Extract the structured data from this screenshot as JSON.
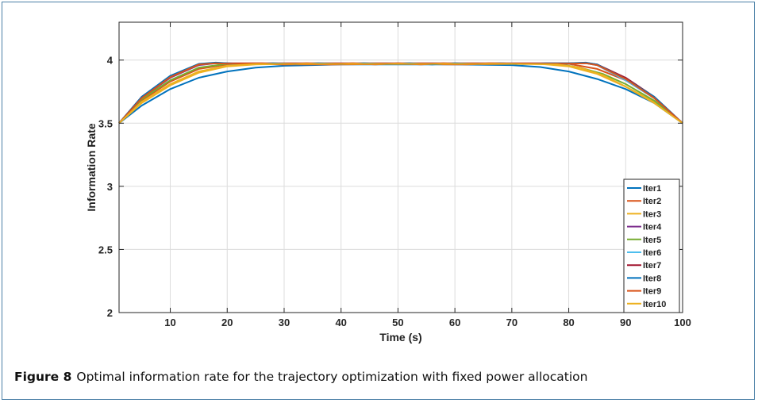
{
  "caption": {
    "label": "Figure 8",
    "text": "Optimal information rate for the trajectory optimization with fixed power allocation"
  },
  "chart_data": {
    "type": "line",
    "title": "",
    "xlabel": "Time (s)",
    "ylabel": "Information Rate",
    "xlim": [
      1,
      100
    ],
    "ylim": [
      2,
      4.3
    ],
    "xticks": [
      10,
      20,
      30,
      40,
      50,
      60,
      70,
      80,
      90,
      100
    ],
    "yticks": [
      2,
      2.5,
      3,
      3.5,
      4
    ],
    "ytick_labels": [
      "2",
      "2.5",
      "3",
      "3.5",
      "4"
    ],
    "grid": true,
    "legend_position": "bottom-right",
    "series": [
      {
        "name": "Iter1",
        "color": "#0072BD",
        "x": [
          1,
          5,
          10,
          15,
          20,
          25,
          30,
          40,
          50,
          60,
          70,
          75,
          80,
          85,
          90,
          95,
          100
        ],
        "y": [
          3.5,
          3.64,
          3.77,
          3.86,
          3.91,
          3.94,
          3.955,
          3.965,
          3.965,
          3.965,
          3.96,
          3.945,
          3.91,
          3.85,
          3.77,
          3.66,
          3.5
        ]
      },
      {
        "name": "Iter2",
        "color": "#D95319",
        "x": [
          1,
          5,
          10,
          15,
          20,
          25,
          30,
          40,
          50,
          60,
          70,
          80,
          85,
          90,
          95,
          100
        ],
        "y": [
          3.5,
          3.68,
          3.83,
          3.93,
          3.965,
          3.97,
          3.965,
          3.965,
          3.97,
          3.965,
          3.97,
          3.97,
          3.93,
          3.84,
          3.7,
          3.5
        ]
      },
      {
        "name": "Iter3",
        "color": "#EDB120",
        "x": [
          1,
          5,
          10,
          15,
          20,
          25,
          30,
          40,
          50,
          60,
          70,
          75,
          80,
          85,
          90,
          95,
          100
        ],
        "y": [
          3.5,
          3.66,
          3.8,
          3.9,
          3.95,
          3.965,
          3.97,
          3.97,
          3.97,
          3.97,
          3.97,
          3.97,
          3.95,
          3.89,
          3.79,
          3.67,
          3.5
        ]
      },
      {
        "name": "Iter4",
        "color": "#7E2F8E",
        "x": [
          1,
          5,
          10,
          15,
          18,
          20,
          30,
          40,
          50,
          60,
          70,
          80,
          83,
          85,
          90,
          95,
          100
        ],
        "y": [
          3.5,
          3.7,
          3.86,
          3.96,
          3.975,
          3.972,
          3.972,
          3.972,
          3.972,
          3.972,
          3.972,
          3.972,
          3.975,
          3.96,
          3.84,
          3.7,
          3.5
        ]
      },
      {
        "name": "Iter5",
        "color": "#77AC30",
        "x": [
          1,
          5,
          10,
          15,
          20,
          25,
          30,
          40,
          50,
          60,
          70,
          78,
          82,
          86,
          90,
          95,
          100
        ],
        "y": [
          3.5,
          3.69,
          3.84,
          3.94,
          3.97,
          3.972,
          3.972,
          3.972,
          3.972,
          3.972,
          3.972,
          3.97,
          3.94,
          3.89,
          3.81,
          3.68,
          3.5
        ]
      },
      {
        "name": "Iter6",
        "color": "#4DBEEE",
        "x": [
          1,
          5,
          10,
          15,
          18,
          20,
          30,
          40,
          50,
          60,
          70,
          80,
          83,
          85,
          90,
          95,
          100
        ],
        "y": [
          3.5,
          3.7,
          3.87,
          3.965,
          3.975,
          3.972,
          3.972,
          3.972,
          3.972,
          3.972,
          3.972,
          3.972,
          3.975,
          3.96,
          3.84,
          3.7,
          3.5
        ]
      },
      {
        "name": "Iter7",
        "color": "#A2142F",
        "x": [
          1,
          5,
          10,
          15,
          18,
          20,
          30,
          40,
          50,
          60,
          70,
          80,
          83,
          85,
          90,
          95,
          100
        ],
        "y": [
          3.5,
          3.71,
          3.87,
          3.965,
          3.978,
          3.975,
          3.975,
          3.975,
          3.975,
          3.975,
          3.975,
          3.975,
          3.978,
          3.965,
          3.86,
          3.71,
          3.5
        ]
      },
      {
        "name": "Iter8",
        "color": "#0072BD",
        "x": [
          1,
          5,
          10,
          15,
          18,
          20,
          24,
          28,
          32,
          36,
          40,
          44,
          48,
          52,
          56,
          60,
          64,
          68,
          72,
          76,
          80,
          83,
          85,
          90,
          95,
          100
        ],
        "y": [
          3.5,
          3.71,
          3.875,
          3.97,
          3.98,
          3.975,
          3.968,
          3.975,
          3.968,
          3.975,
          3.968,
          3.975,
          3.968,
          3.975,
          3.965,
          3.975,
          3.968,
          3.975,
          3.968,
          3.975,
          3.975,
          3.98,
          3.965,
          3.85,
          3.71,
          3.5
        ]
      },
      {
        "name": "Iter9",
        "color": "#D95319",
        "x": [
          1,
          5,
          10,
          15,
          18,
          20,
          26,
          30,
          34,
          38,
          42,
          46,
          50,
          54,
          58,
          62,
          66,
          70,
          80,
          83,
          85,
          90,
          95,
          100
        ],
        "y": [
          3.5,
          3.7,
          3.865,
          3.965,
          3.975,
          3.972,
          3.975,
          3.965,
          3.975,
          3.965,
          3.975,
          3.965,
          3.975,
          3.965,
          3.975,
          3.965,
          3.975,
          3.972,
          3.972,
          3.975,
          3.96,
          3.85,
          3.7,
          3.5
        ]
      },
      {
        "name": "Iter10",
        "color": "#EDB120",
        "x": [
          1,
          5,
          10,
          15,
          20,
          25,
          30,
          40,
          50,
          60,
          70,
          78,
          82,
          86,
          90,
          95,
          100
        ],
        "y": [
          3.5,
          3.67,
          3.81,
          3.91,
          3.955,
          3.968,
          3.97,
          3.97,
          3.97,
          3.97,
          3.97,
          3.965,
          3.94,
          3.88,
          3.79,
          3.66,
          3.5
        ]
      }
    ]
  }
}
